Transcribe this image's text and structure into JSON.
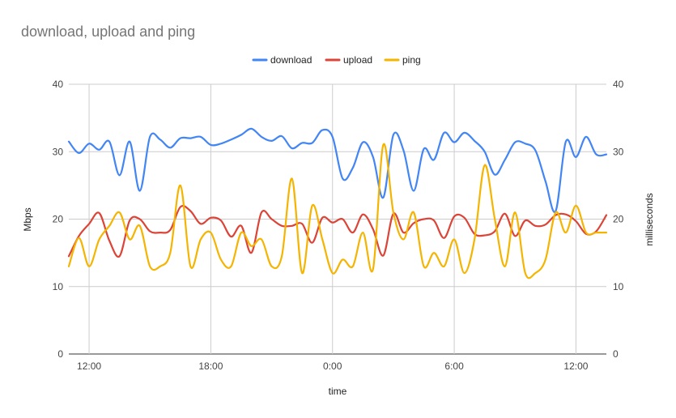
{
  "chart_data": {
    "type": "line",
    "title": "download, upload and ping",
    "xlabel": "time",
    "ylabel": "Mbps",
    "ylabel_right": "milliseconds",
    "ylim": [
      0,
      40
    ],
    "ylim_right": [
      0,
      40
    ],
    "yticks": [
      "0",
      "10",
      "20",
      "30",
      "40"
    ],
    "yticks_right": [
      "0",
      "10",
      "20",
      "30",
      "40"
    ],
    "xlim_hours": [
      11,
      37.5
    ],
    "xticks": [
      {
        "hour": 12,
        "label": "12:00"
      },
      {
        "hour": 18,
        "label": "18:00"
      },
      {
        "hour": 24,
        "label": "0:00"
      },
      {
        "hour": 30,
        "label": "6:00"
      },
      {
        "hour": 36,
        "label": "12:00"
      }
    ],
    "grid": true,
    "legend_position": "top",
    "series": [
      {
        "name": "download",
        "color": "#4285f4",
        "axis": "left",
        "x": [
          11,
          11.5,
          12,
          12.5,
          13,
          13.5,
          14,
          14.5,
          15,
          15.5,
          16,
          16.5,
          17,
          17.5,
          18,
          18.5,
          19,
          19.5,
          20,
          20.5,
          21,
          21.5,
          22,
          22.5,
          23,
          23.5,
          24,
          24.5,
          25,
          25.5,
          26,
          26.5,
          27,
          27.5,
          28,
          28.5,
          29,
          29.5,
          30,
          30.5,
          31,
          31.5,
          32,
          32.5,
          33,
          33.5,
          34,
          34.5,
          35,
          35.5,
          36,
          36.5,
          37,
          37.5
        ],
        "y": [
          31.5,
          29.8,
          31.2,
          30.3,
          31.5,
          26.5,
          31.5,
          24.2,
          32.2,
          31.8,
          30.6,
          32.0,
          32.0,
          32.2,
          31.0,
          31.2,
          31.8,
          32.5,
          33.4,
          32.2,
          31.6,
          32.3,
          30.5,
          31.3,
          31.3,
          33.2,
          32.2,
          26.0,
          27.6,
          31.4,
          29.2,
          23.2,
          32.5,
          30.2,
          24.2,
          30.4,
          28.8,
          32.8,
          31.4,
          32.8,
          31.6,
          30.0,
          26.6,
          28.8,
          31.4,
          31.2,
          30.2,
          25.6,
          21.2,
          31.5,
          29.2,
          32.2,
          29.6,
          29.6
        ]
      },
      {
        "name": "upload",
        "color": "#db4437",
        "axis": "left",
        "x": [
          11,
          11.5,
          12,
          12.5,
          13,
          13.5,
          14,
          14.5,
          15,
          15.5,
          16,
          16.5,
          17,
          17.5,
          18,
          18.5,
          19,
          19.5,
          20,
          20.5,
          21,
          21.5,
          22,
          22.5,
          23,
          23.5,
          24,
          24.5,
          25,
          25.5,
          26,
          26.5,
          27,
          27.5,
          28,
          28.5,
          29,
          29.5,
          30,
          30.5,
          31,
          31.5,
          32,
          32.5,
          33,
          33.5,
          34,
          34.5,
          35,
          35.5,
          36,
          36.5,
          37,
          37.5
        ],
        "y": [
          14.5,
          17.5,
          19.3,
          20.9,
          16.8,
          14.5,
          19.8,
          20.0,
          18.2,
          18.0,
          18.4,
          21.8,
          21.2,
          19.3,
          20.2,
          19.8,
          17.4,
          19.0,
          15.0,
          21.0,
          20.0,
          19.0,
          19.0,
          19.3,
          16.5,
          20.2,
          19.5,
          20.0,
          18.0,
          20.7,
          18.5,
          14.6,
          20.8,
          18.0,
          19.4,
          20.0,
          19.8,
          17.2,
          20.4,
          20.2,
          17.8,
          17.6,
          18.2,
          20.8,
          17.5,
          19.8,
          19.0,
          19.2,
          20.6,
          20.7,
          19.7,
          17.8,
          18.2,
          20.6
        ]
      },
      {
        "name": "ping",
        "color": "#f4b400",
        "axis": "right",
        "x": [
          11,
          11.5,
          12,
          12.5,
          13,
          13.5,
          14,
          14.5,
          15,
          15.5,
          16,
          16.5,
          17,
          17.5,
          18,
          18.5,
          19,
          19.5,
          20,
          20.5,
          21,
          21.5,
          22,
          22.5,
          23,
          23.5,
          24,
          24.5,
          25,
          25.5,
          26,
          26.5,
          27,
          27.5,
          28,
          28.5,
          29,
          29.5,
          30,
          30.5,
          31,
          31.5,
          32,
          32.5,
          33,
          33.5,
          34,
          34.5,
          35,
          35.5,
          36,
          36.5,
          37,
          37.5
        ],
        "y": [
          13.0,
          17.2,
          13.0,
          17.0,
          19.0,
          21.0,
          17.0,
          19.0,
          13.0,
          13.0,
          15.0,
          25.0,
          13.0,
          17.0,
          18.0,
          14.0,
          13.0,
          18.0,
          16.0,
          17.0,
          13.0,
          14.5,
          26.0,
          12.0,
          22.0,
          17.0,
          12.0,
          14.0,
          13.0,
          18.0,
          12.6,
          31.0,
          21.0,
          17.0,
          21.0,
          13.0,
          15.0,
          13.0,
          17.0,
          12.0,
          17.0,
          28.0,
          20.0,
          13.0,
          21.0,
          12.0,
          12.0,
          14.0,
          21.0,
          18.0,
          22.0,
          18.0,
          18.0,
          18.0
        ]
      }
    ]
  }
}
